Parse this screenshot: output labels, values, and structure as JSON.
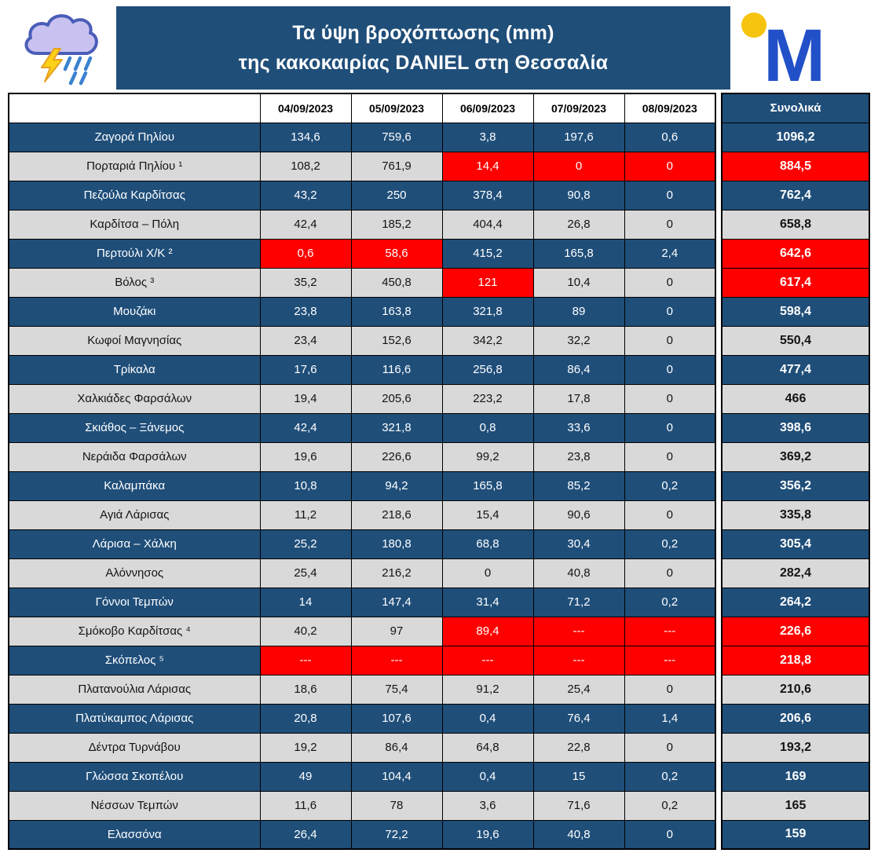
{
  "header": {
    "title_line1": "Τα ύψη βροχόπτωσης (mm)",
    "title_line2": "της κακοκαιρίας DANIEL στη Θεσσαλία",
    "weather_icon": "storm-cloud-rain-lightning-icon",
    "logo_icon": "meteo-m-logo",
    "logo_letter": "M"
  },
  "colors": {
    "navy": "#1f4e79",
    "row_gray": "#d9d9d9",
    "alert_red": "#fe0000",
    "logo_blue": "#2150c8",
    "logo_yellow": "#f6c40e",
    "cloud_purple": "#c9c2f0",
    "cloud_outline": "#4a5db8",
    "bolt_yellow": "#fcd116",
    "rain_blue": "#3b82d0"
  },
  "chart_data": {
    "type": "table",
    "title": "Τα ύψη βροχόπτωσης (mm) της κακοκαιρίας DANIEL στη Θεσσαλία",
    "unit": "mm",
    "columns": [
      "04/09/2023",
      "05/09/2023",
      "06/09/2023",
      "07/09/2023",
      "08/09/2023"
    ],
    "total_label": "Συνολικά",
    "rows": [
      {
        "station": "Ζαγορά Πηλίου",
        "values": [
          "134,6",
          "759,6",
          "3,8",
          "197,6",
          "0,6"
        ],
        "total": "1096,2",
        "red_cells": [],
        "red_total": false
      },
      {
        "station": "Πορταριά Πηλίου ¹",
        "values": [
          "108,2",
          "761,9",
          "14,4",
          "0",
          "0"
        ],
        "total": "884,5",
        "red_cells": [
          2,
          3,
          4
        ],
        "red_total": true
      },
      {
        "station": "Πεζούλα Καρδίτσας",
        "values": [
          "43,2",
          "250",
          "378,4",
          "90,8",
          "0"
        ],
        "total": "762,4",
        "red_cells": [],
        "red_total": false
      },
      {
        "station": "Καρδίτσα – Πόλη",
        "values": [
          "42,4",
          "185,2",
          "404,4",
          "26,8",
          "0"
        ],
        "total": "658,8",
        "red_cells": [],
        "red_total": false
      },
      {
        "station": "Περτούλι Χ/Κ ²",
        "values": [
          "0,6",
          "58,6",
          "415,2",
          "165,8",
          "2,4"
        ],
        "total": "642,6",
        "red_cells": [
          0,
          1
        ],
        "red_total": true
      },
      {
        "station": "Βόλος ³",
        "values": [
          "35,2",
          "450,8",
          "121",
          "10,4",
          "0"
        ],
        "total": "617,4",
        "red_cells": [
          2
        ],
        "red_total": true
      },
      {
        "station": "Μουζάκι",
        "values": [
          "23,8",
          "163,8",
          "321,8",
          "89",
          "0"
        ],
        "total": "598,4",
        "red_cells": [],
        "red_total": false
      },
      {
        "station": "Κωφοί Μαγνησίας",
        "values": [
          "23,4",
          "152,6",
          "342,2",
          "32,2",
          "0"
        ],
        "total": "550,4",
        "red_cells": [],
        "red_total": false
      },
      {
        "station": "Τρίκαλα",
        "values": [
          "17,6",
          "116,6",
          "256,8",
          "86,4",
          "0"
        ],
        "total": "477,4",
        "red_cells": [],
        "red_total": false
      },
      {
        "station": "Χαλκιάδες Φαρσάλων",
        "values": [
          "19,4",
          "205,6",
          "223,2",
          "17,8",
          "0"
        ],
        "total": "466",
        "red_cells": [],
        "red_total": false
      },
      {
        "station": "Σκιάθος – Ξάνεμος",
        "values": [
          "42,4",
          "321,8",
          "0,8",
          "33,6",
          "0"
        ],
        "total": "398,6",
        "red_cells": [],
        "red_total": false
      },
      {
        "station": "Νεράιδα Φαρσάλων",
        "values": [
          "19,6",
          "226,6",
          "99,2",
          "23,8",
          "0"
        ],
        "total": "369,2",
        "red_cells": [],
        "red_total": false
      },
      {
        "station": "Καλαμπάκα",
        "values": [
          "10,8",
          "94,2",
          "165,8",
          "85,2",
          "0,2"
        ],
        "total": "356,2",
        "red_cells": [],
        "red_total": false
      },
      {
        "station": "Αγιά Λάρισας",
        "values": [
          "11,2",
          "218,6",
          "15,4",
          "90,6",
          "0"
        ],
        "total": "335,8",
        "red_cells": [],
        "red_total": false
      },
      {
        "station": "Λάρισα – Χάλκη",
        "values": [
          "25,2",
          "180,8",
          "68,8",
          "30,4",
          "0,2"
        ],
        "total": "305,4",
        "red_cells": [],
        "red_total": false
      },
      {
        "station": "Αλόννησος",
        "values": [
          "25,4",
          "216,2",
          "0",
          "40,8",
          "0"
        ],
        "total": "282,4",
        "red_cells": [],
        "red_total": false
      },
      {
        "station": "Γόννοι Τεμπών",
        "values": [
          "14",
          "147,4",
          "31,4",
          "71,2",
          "0,2"
        ],
        "total": "264,2",
        "red_cells": [],
        "red_total": false
      },
      {
        "station": "Σμόκοβο Καρδίτσας ⁴",
        "values": [
          "40,2",
          "97",
          "89,4",
          "---",
          "---"
        ],
        "total": "226,6",
        "red_cells": [
          2,
          3,
          4
        ],
        "red_total": true
      },
      {
        "station": "Σκόπελος ⁵",
        "values": [
          "---",
          "---",
          "---",
          "---",
          "---"
        ],
        "total": "218,8",
        "red_cells": [
          0,
          1,
          2,
          3,
          4
        ],
        "red_total": true
      },
      {
        "station": "Πλατανούλια Λάρισας",
        "values": [
          "18,6",
          "75,4",
          "91,2",
          "25,4",
          "0"
        ],
        "total": "210,6",
        "red_cells": [],
        "red_total": false
      },
      {
        "station": "Πλατύκαμπος Λάρισας",
        "values": [
          "20,8",
          "107,6",
          "0,4",
          "76,4",
          "1,4"
        ],
        "total": "206,6",
        "red_cells": [],
        "red_total": false
      },
      {
        "station": "Δέντρα Τυρνάβου",
        "values": [
          "19,2",
          "86,4",
          "64,8",
          "22,8",
          "0"
        ],
        "total": "193,2",
        "red_cells": [],
        "red_total": false
      },
      {
        "station": "Γλώσσα Σκοπέλου",
        "values": [
          "49",
          "104,4",
          "0,4",
          "15",
          "0,2"
        ],
        "total": "169",
        "red_cells": [],
        "red_total": false
      },
      {
        "station": "Νέσσων Τεμπών",
        "values": [
          "11,6",
          "78",
          "3,6",
          "71,6",
          "0,2"
        ],
        "total": "165",
        "red_cells": [],
        "red_total": false
      },
      {
        "station": "Ελασσόνα",
        "values": [
          "26,4",
          "72,2",
          "19,6",
          "40,8",
          "0"
        ],
        "total": "159",
        "red_cells": [],
        "red_total": false
      }
    ]
  }
}
